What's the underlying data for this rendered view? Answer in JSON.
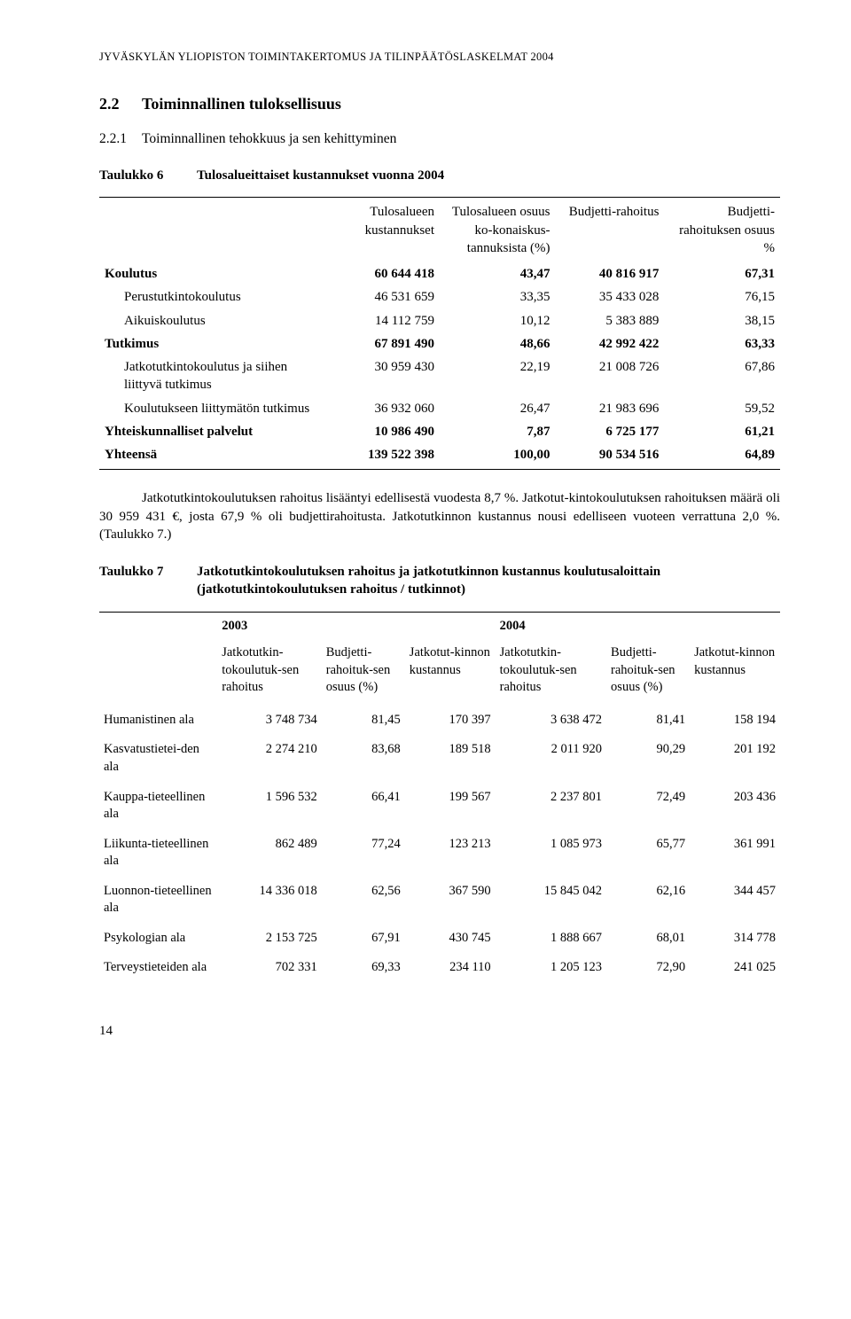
{
  "running_header": "JYVÄSKYLÄN YLIOPISTON TOIMINTAKERTOMUS JA TILINPÄÄTÖSLASKELMAT 2004",
  "section": {
    "number": "2.2",
    "title": "Toiminnallinen tuloksellisuus"
  },
  "subsection": {
    "number": "2.2.1",
    "title": "Toiminnallinen tehokkuus ja sen kehittyminen"
  },
  "t6_title_prefix": "Taulukko 6",
  "t6_title": "Tulosalueittaiset kustannukset vuonna 2004",
  "t6": {
    "columns": [
      "",
      "Tulosalueen kustannukset",
      "Tulosalueen osuus ko-konaiskus-tannuksista (%)",
      "Budjetti-rahoitus",
      "Budjetti-rahoituksen osuus %"
    ],
    "rows": [
      {
        "label": "Koulutus",
        "vals": [
          "60 644 418",
          "43,47",
          "40 816 917",
          "67,31"
        ],
        "bold": true
      },
      {
        "label": "Perustutkintokoulutus",
        "vals": [
          "46 531 659",
          "33,35",
          "35 433 028",
          "76,15"
        ],
        "indent": true
      },
      {
        "label": "Aikuiskoulutus",
        "vals": [
          "14 112 759",
          "10,12",
          "5 383 889",
          "38,15"
        ],
        "indent": true
      },
      {
        "label": "Tutkimus",
        "vals": [
          "67 891 490",
          "48,66",
          "42 992 422",
          "63,33"
        ],
        "bold": true
      },
      {
        "label": "Jatkotutkintokoulutus ja siihen liittyvä tutkimus",
        "vals": [
          "30 959 430",
          "22,19",
          "21 008 726",
          "67,86"
        ],
        "indent": true
      },
      {
        "label": "Koulutukseen liittymätön tutkimus",
        "vals": [
          "36 932 060",
          "26,47",
          "21 983 696",
          "59,52"
        ],
        "indent": true
      },
      {
        "label": "Yhteiskunnalliset palvelut",
        "vals": [
          "10 986 490",
          "7,87",
          "6 725 177",
          "61,21"
        ],
        "bold": true
      },
      {
        "label": "Yhteensä",
        "vals": [
          "139 522 398",
          "100,00",
          "90 534 516",
          "64,89"
        ],
        "bold": true
      }
    ]
  },
  "paragraph": "Jatkotutkintokoulutuksen rahoitus lisääntyi edellisestä vuodesta 8,7 %. Jatkotut-kintokoulutuksen rahoituksen määrä oli 30 959 431 €, josta 67,9 % oli budjettirahoitusta. Jatkotutkinnon kustannus nousi edelliseen vuoteen verrattuna 2,0 %. (Taulukko 7.)",
  "t7_title_prefix": "Taulukko 7",
  "t7_title": "Jatkotutkintokoulutuksen rahoitus ja jatkotutkinnon kustannus koulutusaloittain (jatkotutkintokoulutuksen rahoitus / tutkinnot)",
  "t7": {
    "year_headers": [
      "2003",
      "2004"
    ],
    "columns": [
      "",
      "Jatkotutkin-tokoulutuk-sen rahoitus",
      "Budjetti-rahoituk-sen osuus (%)",
      "Jatkotut-kinnon kustannus",
      "Jatkotutkin-tokoulutuk-sen rahoitus",
      "Budjetti-rahoituk-sen osuus (%)",
      "Jatkotut-kinnon kustannus"
    ],
    "rows": [
      {
        "label": "Humanistinen ala",
        "vals": [
          "3 748 734",
          "81,45",
          "170 397",
          "3 638 472",
          "81,41",
          "158 194"
        ]
      },
      {
        "label": "Kasvatustietei-den ala",
        "vals": [
          "2 274 210",
          "83,68",
          "189 518",
          "2 011 920",
          "90,29",
          "201 192"
        ]
      },
      {
        "label": "Kauppa-tieteellinen ala",
        "vals": [
          "1 596 532",
          "66,41",
          "199 567",
          "2 237 801",
          "72,49",
          "203 436"
        ]
      },
      {
        "label": "Liikunta-tieteellinen ala",
        "vals": [
          "862 489",
          "77,24",
          "123 213",
          "1 085 973",
          "65,77",
          "361 991"
        ]
      },
      {
        "label": "Luonnon-tieteellinen ala",
        "vals": [
          "14 336 018",
          "62,56",
          "367 590",
          "15 845 042",
          "62,16",
          "344 457"
        ]
      },
      {
        "label": "Psykologian ala",
        "vals": [
          "2 153 725",
          "67,91",
          "430 745",
          "1 888 667",
          "68,01",
          "314 778"
        ]
      },
      {
        "label": "Terveystieteiden ala",
        "vals": [
          "702 331",
          "69,33",
          "234 110",
          "1 205 123",
          "72,90",
          "241 025"
        ]
      }
    ]
  },
  "page_number": "14"
}
